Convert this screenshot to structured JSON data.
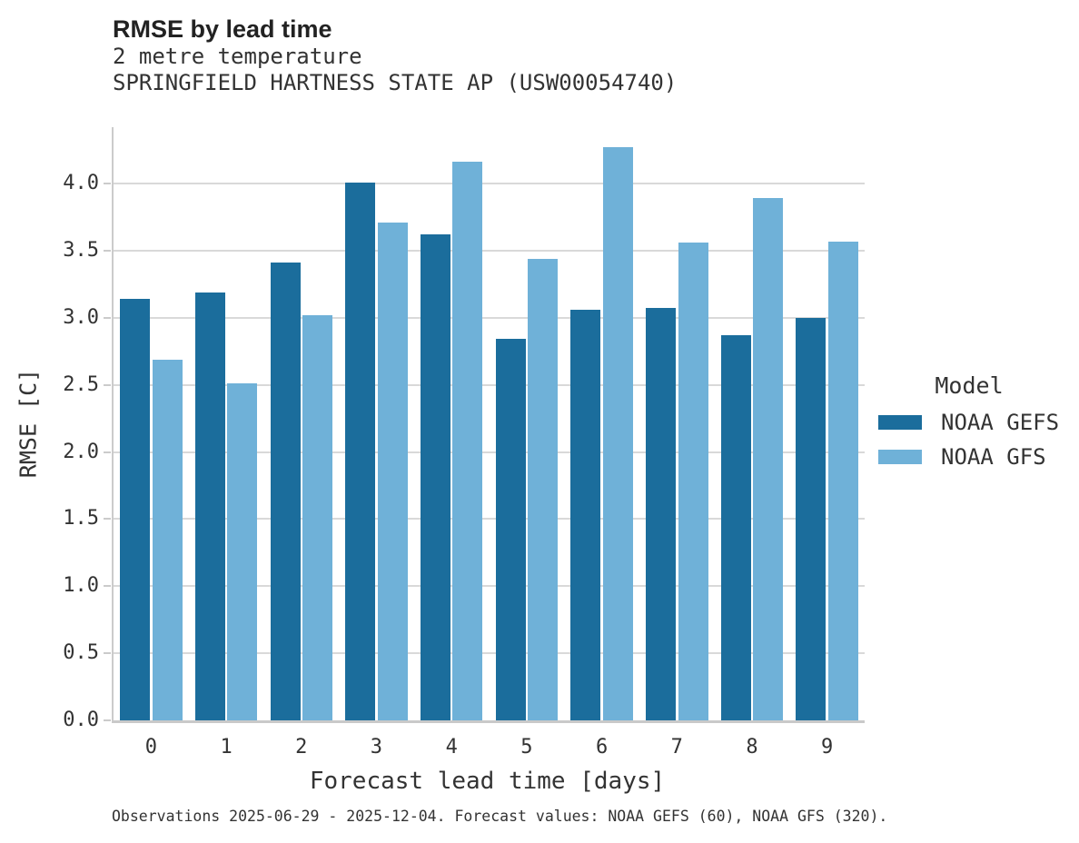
{
  "chart_data": {
    "type": "bar",
    "title": "RMSE by lead time",
    "subtitle": [
      "2 metre temperature",
      "SPRINGFIELD HARTNESS STATE AP (USW00054740)"
    ],
    "xlabel": "Forecast lead time [days]",
    "ylabel": "RMSE [C]",
    "categories": [
      "0",
      "1",
      "2",
      "3",
      "4",
      "5",
      "6",
      "7",
      "8",
      "9"
    ],
    "series": [
      {
        "name": "NOAA GEFS",
        "color": "#1b6d9c",
        "values": [
          3.14,
          3.19,
          3.41,
          4.01,
          3.62,
          2.84,
          3.06,
          3.07,
          2.87,
          3.0
        ]
      },
      {
        "name": "NOAA GFS",
        "color": "#6fb1d8",
        "values": [
          2.69,
          2.51,
          3.02,
          3.71,
          4.16,
          3.44,
          4.27,
          3.56,
          3.89,
          3.57
        ]
      }
    ],
    "ylim": [
      0,
      4.42
    ],
    "yticks": [
      0.0,
      0.5,
      1.0,
      1.5,
      2.0,
      2.5,
      3.0,
      3.5,
      4.0
    ],
    "grid": true,
    "legend_title": "Model",
    "legend_position": "right",
    "caption": "Observations 2025-06-29 - 2025-12-04. Forecast values: NOAA GEFS (60), NOAA GFS (320)."
  },
  "colors": {
    "background": "#ffffff",
    "grid": "#d9d9d9",
    "spine": "#cbcbcb",
    "title_text": "#222222",
    "body_text": "#333333"
  }
}
